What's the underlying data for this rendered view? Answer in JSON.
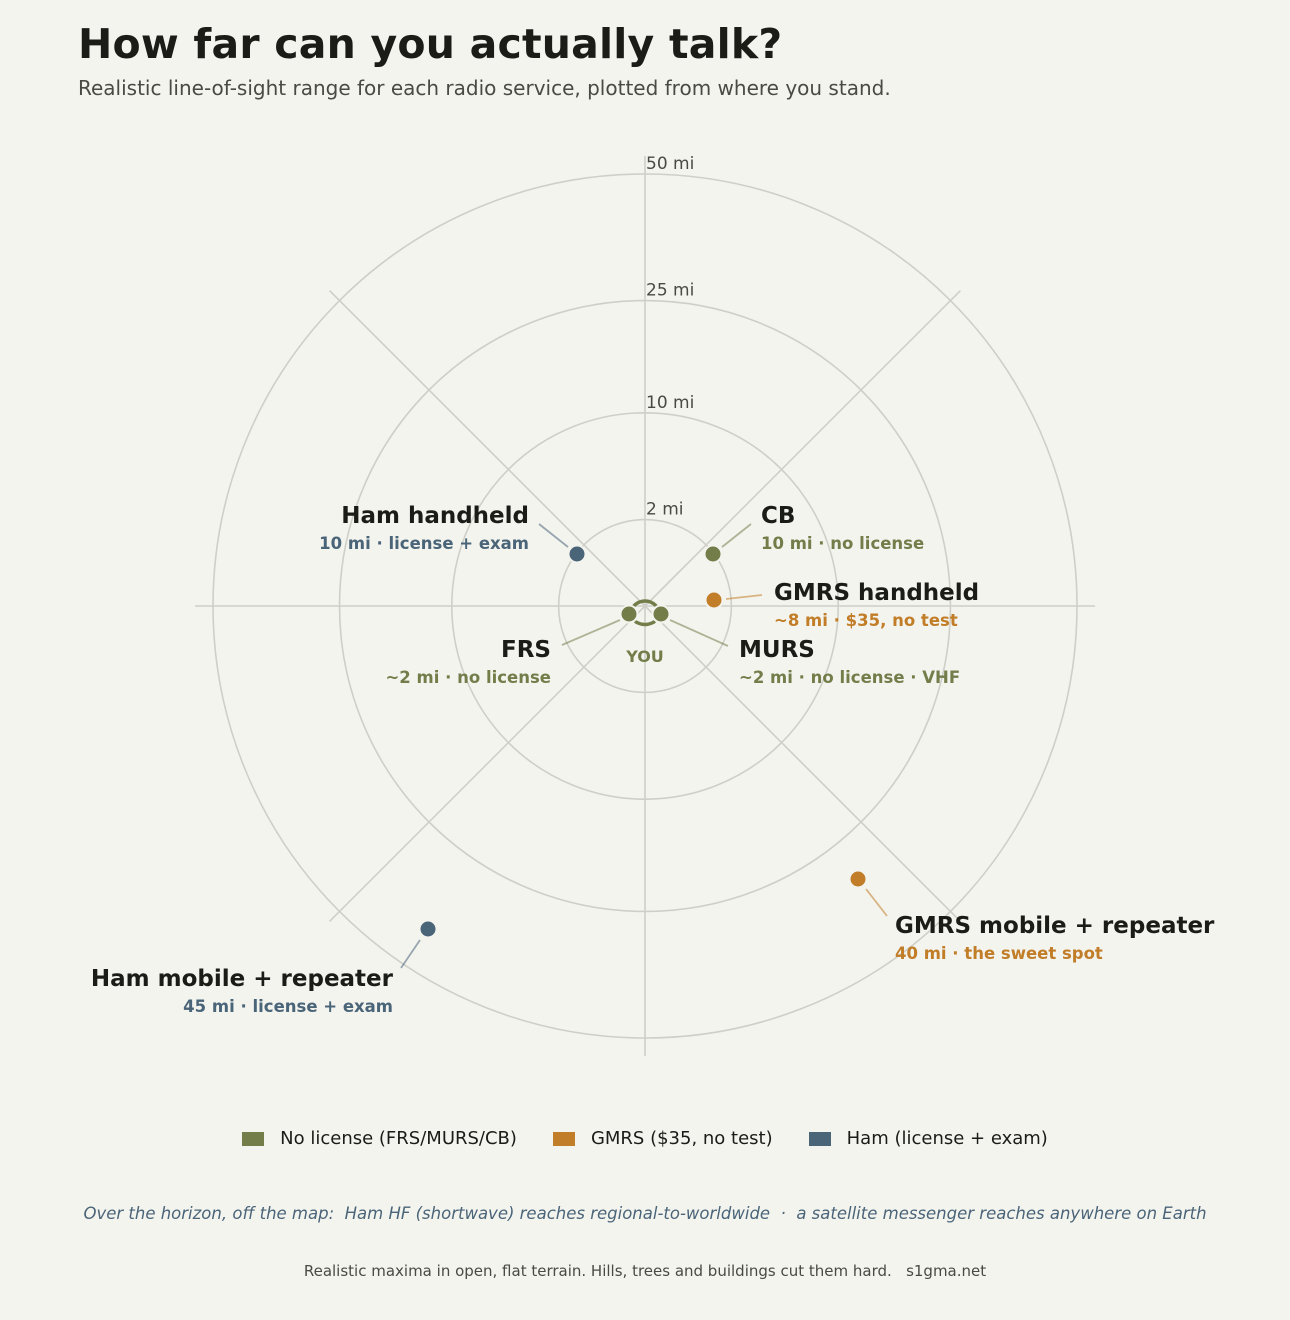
{
  "title": "How far can you actually talk?",
  "subtitle": "Realistic line-of-sight range for each radio service, plotted from where you stand.",
  "colors": {
    "no_license": "#737d4a",
    "gmrs": "#c17d27",
    "ham": "#4a6478",
    "grid": "#cfcfc8",
    "ink": "#1b1b17"
  },
  "chart_data": {
    "type": "scatter",
    "coordinate_system": "polar",
    "center_label": "YOU",
    "rings": [
      {
        "value": 2,
        "label": "2 mi"
      },
      {
        "value": 10,
        "label": "10 mi"
      },
      {
        "value": 25,
        "label": "25 mi"
      },
      {
        "value": 50,
        "label": "50 mi"
      }
    ],
    "r_max": 50,
    "spokes_deg": [
      0,
      45,
      90,
      135,
      180,
      225,
      270,
      315
    ],
    "points": [
      {
        "name": "FRS",
        "detail": "~2 mi · no license",
        "range_mi": 2,
        "bearing_deg": 245,
        "group": "no_license"
      },
      {
        "name": "MURS",
        "detail": "~2 mi · no license · VHF",
        "range_mi": 2,
        "bearing_deg": 115,
        "group": "no_license"
      },
      {
        "name": "CB",
        "detail": "10 mi · no license",
        "range_mi": 10,
        "bearing_deg": 45,
        "group": "no_license"
      },
      {
        "name": "GMRS handheld",
        "detail": "~8 mi · $35, no test",
        "range_mi": 8,
        "bearing_deg": 85,
        "group": "gmrs"
      },
      {
        "name": "Ham handheld",
        "detail": "10 mi · license + exam",
        "range_mi": 10,
        "bearing_deg": 315,
        "group": "ham"
      },
      {
        "name": "GMRS mobile + repeater",
        "detail": "40 mi · the sweet spot",
        "range_mi": 40,
        "bearing_deg": 142,
        "group": "gmrs"
      },
      {
        "name": "Ham mobile + repeater",
        "detail": "45 mi · license + exam",
        "range_mi": 45,
        "bearing_deg": 227,
        "group": "ham"
      }
    ]
  },
  "legend": [
    {
      "label": "No license (FRS/MURS/CB)",
      "group": "no_license"
    },
    {
      "label": "GMRS ($35, no test)",
      "group": "gmrs"
    },
    {
      "label": "Ham (license + exam)",
      "group": "ham"
    }
  ],
  "horizon_note": {
    "prefix": "Over the horizon, off the map:  ",
    "ham_hf": "Ham HF (shortwave) reaches regional-to-worldwide",
    "separator": "  ·  ",
    "satellite": "a satellite messenger reaches anywhere on Earth"
  },
  "footer": "Realistic maxima in open, flat terrain. Hills, trees and buildings cut them hard.   s1gma.net"
}
